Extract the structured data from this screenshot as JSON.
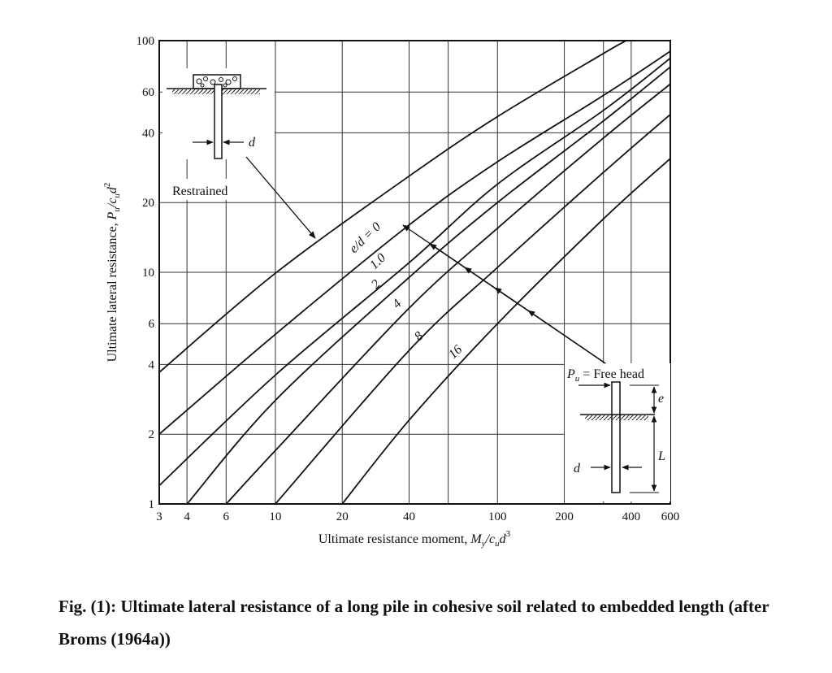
{
  "chart_data": {
    "type": "line",
    "xscale": "log",
    "yscale": "log",
    "xlim": [
      3,
      600
    ],
    "ylim": [
      1,
      100
    ],
    "xticks": [
      3,
      4,
      6,
      10,
      20,
      40,
      100,
      200,
      400,
      600
    ],
    "xtick_labels": [
      "3",
      "4",
      "6",
      "10",
      "20",
      "40",
      "100",
      "200",
      "400",
      "600"
    ],
    "yticks": [
      1,
      2,
      4,
      6,
      10,
      20,
      40,
      60,
      100
    ],
    "ytick_labels": [
      "1",
      "2",
      "4",
      "6",
      "10",
      "20",
      "40",
      "60",
      "100"
    ],
    "xgrid": [
      3,
      4,
      6,
      10,
      20,
      40,
      60,
      100,
      200,
      300,
      400,
      600
    ],
    "ygrid": [
      1,
      2,
      4,
      6,
      10,
      20,
      40,
      60,
      100
    ],
    "xlabel": {
      "pre": "Ultimate resistance moment, ",
      "sym": "M",
      "sub1": "y",
      "mid": "/c",
      "sub2": "u",
      "d": "d",
      "sup": "3"
    },
    "ylabel": {
      "pre": "Ultimate lateral resistance, ",
      "sym": "P",
      "sub1": "u",
      "mid": "/c",
      "sub2": "u",
      "d": "d",
      "sup": "2"
    },
    "series": [
      {
        "name": "Restrained",
        "points": [
          [
            3,
            3.7
          ],
          [
            10,
            9.9
          ],
          [
            40,
            26
          ],
          [
            100,
            47
          ],
          [
            300,
            88
          ],
          [
            380,
            100
          ]
        ]
      },
      {
        "name": "e/d = 0",
        "label": "e/d = 0",
        "points": [
          [
            3,
            2.0
          ],
          [
            10,
            5.4
          ],
          [
            40,
            16
          ],
          [
            100,
            30
          ],
          [
            300,
            58
          ],
          [
            600,
            90
          ]
        ]
      },
      {
        "name": "e/d = 1.0",
        "label": "1.0",
        "points": [
          [
            3,
            1.2
          ],
          [
            10,
            3.6
          ],
          [
            40,
            11
          ],
          [
            100,
            24
          ],
          [
            300,
            50
          ],
          [
            600,
            84
          ]
        ]
      },
      {
        "name": "e/d = 2",
        "label": "2",
        "points": [
          [
            4,
            1.0
          ],
          [
            10,
            2.8
          ],
          [
            40,
            9.5
          ],
          [
            100,
            20
          ],
          [
            300,
            45
          ],
          [
            600,
            77
          ]
        ]
      },
      {
        "name": "e/d = 4",
        "label": "4",
        "points": [
          [
            6,
            1.0
          ],
          [
            10,
            1.7
          ],
          [
            40,
            7.0
          ],
          [
            100,
            15.5
          ],
          [
            300,
            38
          ],
          [
            600,
            65
          ]
        ]
      },
      {
        "name": "e/d = 8",
        "label": "8",
        "points": [
          [
            10,
            1.0
          ],
          [
            40,
            4.6
          ],
          [
            100,
            10.5
          ],
          [
            300,
            27
          ],
          [
            600,
            48
          ]
        ]
      },
      {
        "name": "e/d = 16",
        "label": "16",
        "points": [
          [
            20,
            1.0
          ],
          [
            40,
            2.3
          ],
          [
            100,
            6.0
          ],
          [
            300,
            17
          ],
          [
            600,
            31
          ]
        ]
      }
    ],
    "annotations": {
      "restrained": "Restrained",
      "free_head": "Free head",
      "pu_label": "P",
      "pu_sub": "u",
      "equals": " =",
      "d": "d",
      "e": "e",
      "L": "L"
    }
  },
  "caption": "Fig. (1): Ultimate lateral resistance of a long pile in cohesive soil related to embedded length (after Broms (1964a))"
}
